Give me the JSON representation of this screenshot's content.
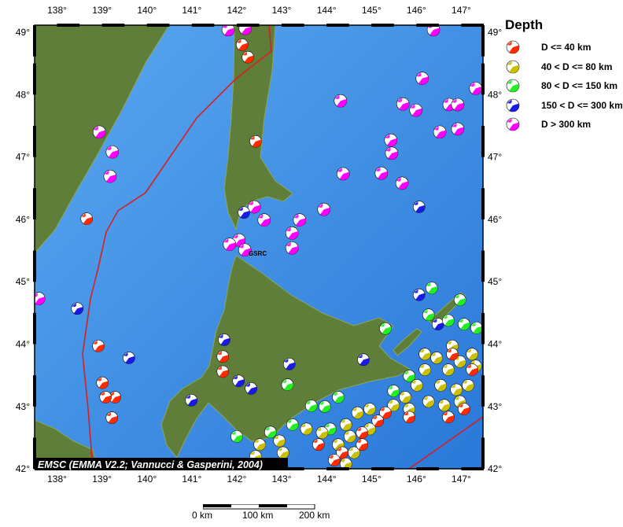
{
  "map": {
    "lon_range": [
      137.5,
      147.5
    ],
    "lat_range": [
      42,
      49.1
    ],
    "lon_ticks": [
      "138°",
      "139°",
      "140°",
      "141°",
      "142°",
      "143°",
      "144°",
      "145°",
      "146°",
      "147°"
    ],
    "lat_ticks": [
      "42°",
      "43°",
      "44°",
      "45°",
      "46°",
      "47°",
      "48°",
      "49°"
    ],
    "credit": "EMSC (EMMA V2.2; Vannucci & Gasperini, 2004)",
    "station_label": "GSRC",
    "colors": {
      "ocean": "#3f8fe0",
      "land": "#5f7e3a",
      "plate_boundary": "#d42020",
      "frame": "#000000"
    }
  },
  "legend": {
    "title": "Depth",
    "items": [
      {
        "label": "D <= 40 km",
        "color": "#ff2a00"
      },
      {
        "label": "40 < D <= 80 km",
        "color": "#c8c000"
      },
      {
        "label": "80 < D <= 150 km",
        "color": "#22ee22"
      },
      {
        "label": "150 < D <= 300 km",
        "color": "#1a1ae6"
      },
      {
        "label": "D > 300 km",
        "color": "#ff00ff"
      }
    ]
  },
  "scale_bar": {
    "labels": [
      "0 km",
      "100 km",
      "200 km"
    ]
  },
  "events": [
    [
      141.81,
      49.04,
      4
    ],
    [
      142.19,
      49.06,
      4
    ],
    [
      146.38,
      49.04,
      4
    ],
    [
      146.13,
      48.26,
      4
    ],
    [
      144.31,
      47.9,
      4
    ],
    [
      145.7,
      47.85,
      4
    ],
    [
      145.99,
      47.75,
      4
    ],
    [
      146.73,
      47.84,
      4
    ],
    [
      146.92,
      47.84,
      4
    ],
    [
      147.32,
      48.1,
      4
    ],
    [
      146.52,
      47.4,
      4
    ],
    [
      146.92,
      47.45,
      4
    ],
    [
      145.43,
      47.27,
      4
    ],
    [
      145.45,
      47.06,
      4
    ],
    [
      144.37,
      46.73,
      4
    ],
    [
      145.22,
      46.74,
      4
    ],
    [
      145.68,
      46.58,
      4
    ],
    [
      138.94,
      47.4,
      4
    ],
    [
      139.23,
      47.08,
      4
    ],
    [
      139.18,
      46.69,
      4
    ],
    [
      142.39,
      46.2,
      4
    ],
    [
      142.61,
      45.99,
      4
    ],
    [
      143.4,
      45.99,
      4
    ],
    [
      143.94,
      46.16,
      4
    ],
    [
      143.23,
      45.78,
      4
    ],
    [
      142.05,
      45.67,
      4
    ],
    [
      141.84,
      45.6,
      4
    ],
    [
      142.18,
      45.51,
      4
    ],
    [
      143.23,
      45.54,
      4
    ],
    [
      137.59,
      44.73,
      4
    ],
    [
      146.06,
      46.2,
      3
    ],
    [
      142.16,
      46.11,
      3
    ],
    [
      138.45,
      44.57,
      3
    ],
    [
      139.6,
      43.78,
      3
    ],
    [
      141.72,
      44.07,
      3
    ],
    [
      140.99,
      43.1,
      3
    ],
    [
      142.04,
      43.41,
      3
    ],
    [
      142.32,
      43.29,
      3
    ],
    [
      143.17,
      43.68,
      3
    ],
    [
      144.82,
      43.75,
      3
    ],
    [
      146.06,
      44.79,
      3
    ],
    [
      146.48,
      44.32,
      3
    ],
    [
      142.12,
      48.8,
      0
    ],
    [
      142.25,
      48.6,
      0
    ],
    [
      142.42,
      47.25,
      0
    ],
    [
      138.66,
      46.01,
      0
    ],
    [
      138.92,
      43.97,
      0
    ],
    [
      139.01,
      43.38,
      0
    ],
    [
      139.29,
      43.15,
      0
    ],
    [
      139.08,
      43.15,
      0
    ],
    [
      141.69,
      43.8,
      0
    ],
    [
      141.69,
      43.56,
      0
    ],
    [
      139.22,
      42.82,
      0
    ],
    [
      143.13,
      43.35,
      2
    ],
    [
      142.0,
      42.52,
      2
    ],
    [
      142.75,
      42.59,
      2
    ],
    [
      143.24,
      42.71,
      2
    ],
    [
      143.66,
      43.01,
      2
    ],
    [
      143.96,
      43.0,
      2
    ],
    [
      146.34,
      44.9,
      2
    ],
    [
      146.97,
      44.71,
      2
    ],
    [
      146.71,
      44.38,
      2
    ],
    [
      147.06,
      44.32,
      2
    ],
    [
      147.34,
      44.26,
      2
    ],
    [
      145.31,
      44.25,
      2
    ],
    [
      146.27,
      44.47,
      2
    ],
    [
      144.26,
      43.15,
      2
    ],
    [
      145.49,
      43.25,
      2
    ],
    [
      144.08,
      42.64,
      2
    ],
    [
      145.84,
      43.49,
      2
    ],
    [
      146.19,
      43.84,
      1
    ],
    [
      146.45,
      43.78,
      1
    ],
    [
      146.71,
      43.59,
      1
    ],
    [
      146.97,
      43.72,
      1
    ],
    [
      147.24,
      43.84,
      1
    ],
    [
      147.32,
      43.65,
      1
    ],
    [
      146.54,
      43.34,
      1
    ],
    [
      146.89,
      43.27,
      1
    ],
    [
      147.15,
      43.34,
      1
    ],
    [
      146.27,
      43.08,
      1
    ],
    [
      146.62,
      43.02,
      1
    ],
    [
      146.97,
      43.08,
      1
    ],
    [
      146.01,
      43.34,
      1
    ],
    [
      145.75,
      43.15,
      1
    ],
    [
      144.96,
      42.96,
      1
    ],
    [
      144.69,
      42.9,
      1
    ],
    [
      144.43,
      42.71,
      1
    ],
    [
      144.52,
      42.52,
      1
    ],
    [
      144.26,
      42.39,
      1
    ],
    [
      144.61,
      42.26,
      1
    ],
    [
      144.43,
      42.08,
      1
    ],
    [
      143.9,
      42.58,
      1
    ],
    [
      143.55,
      42.64,
      1
    ],
    [
      142.95,
      42.45,
      1
    ],
    [
      142.51,
      42.39,
      1
    ],
    [
      142.42,
      42.2,
      1
    ],
    [
      143.03,
      42.26,
      1
    ],
    [
      146.19,
      43.59,
      1
    ],
    [
      145.84,
      42.96,
      1
    ],
    [
      145.49,
      43.02,
      1
    ],
    [
      144.96,
      42.64,
      1
    ],
    [
      146.8,
      43.97,
      1
    ],
    [
      146.8,
      43.84,
      0
    ],
    [
      147.24,
      43.59,
      0
    ],
    [
      146.71,
      42.83,
      0
    ],
    [
      145.31,
      42.9,
      0
    ],
    [
      145.84,
      42.83,
      0
    ],
    [
      144.79,
      42.58,
      0
    ],
    [
      144.35,
      42.26,
      0
    ],
    [
      144.17,
      42.14,
      0
    ],
    [
      144.79,
      42.39,
      0
    ],
    [
      143.82,
      42.39,
      0
    ],
    [
      142.51,
      42.08,
      0
    ],
    [
      145.14,
      42.77,
      0
    ],
    [
      147.06,
      42.96,
      0
    ]
  ]
}
